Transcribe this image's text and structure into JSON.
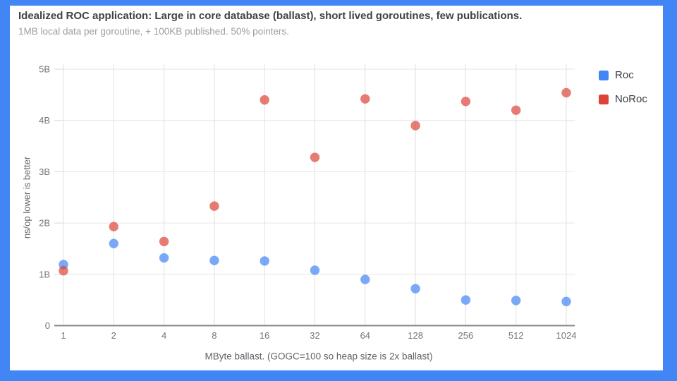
{
  "frame": {
    "border_color": "#4285f4",
    "panel_color": "#ffffff"
  },
  "header": {
    "title": "Idealized ROC application: Large in core database (ballast), short lived goroutines, few publications.",
    "subtitle": "1MB local data per goroutine, + 100KB published. 50% pointers."
  },
  "legend": {
    "position": "right",
    "items": [
      {
        "label": "Roc",
        "color": "#4285f4"
      },
      {
        "label": "NoRoc",
        "color": "#db4437"
      }
    ]
  },
  "chart_data": {
    "type": "scatter",
    "title": "Idealized ROC application: Large in core database (ballast), short lived goroutines, few publications.",
    "subtitle": "1MB local data per goroutine, + 100KB published. 50% pointers.",
    "xlabel": "MByte ballast. (GOGC=100 so heap size is 2x ballast)",
    "ylabel": "ns/op lower is better",
    "x_scale": "log2 categorical (evenly spaced powers of two)",
    "categories": [
      "1",
      "2",
      "4",
      "8",
      "16",
      "32",
      "64",
      "128",
      "256",
      "512",
      "1024"
    ],
    "y_ticks": [
      "0",
      "1B",
      "2B",
      "3B",
      "4B",
      "5B"
    ],
    "y_unit": "ns/op, billions",
    "ylim_billions": [
      0,
      5
    ],
    "grid": true,
    "legend_position": "right",
    "point_opacity": 0.7,
    "series": [
      {
        "name": "Roc",
        "color": "#4285f4",
        "values_billions": [
          1.19,
          1.6,
          1.32,
          1.27,
          1.26,
          1.08,
          0.9,
          0.72,
          0.5,
          0.49,
          0.47
        ]
      },
      {
        "name": "NoRoc",
        "color": "#db4437",
        "values_billions": [
          1.07,
          1.93,
          1.64,
          2.33,
          4.4,
          3.28,
          4.42,
          3.9,
          4.37,
          4.2,
          4.54
        ]
      }
    ]
  }
}
